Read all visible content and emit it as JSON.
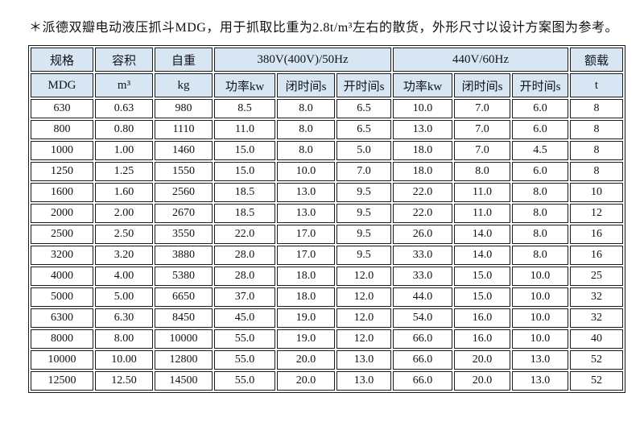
{
  "title": "＊派德双瓣电动液压抓斗MDG，用于抓取比重为2.8t/m³左右的散货，外形尺寸以设计方案图为参考。",
  "colors": {
    "header_bg": "#d8e6f3",
    "border": "#1a1a1a",
    "text": "#111111",
    "page_bg": "#ffffff"
  },
  "table": {
    "top_headers": [
      {
        "label": "规格",
        "colspan": 1
      },
      {
        "label": "容积",
        "colspan": 1
      },
      {
        "label": "自重",
        "colspan": 1
      },
      {
        "label": "380V(400V)/50Hz",
        "colspan": 3
      },
      {
        "label": "440V/60Hz",
        "colspan": 3
      },
      {
        "label": "额载",
        "colspan": 1
      }
    ],
    "sub_headers": [
      "MDG",
      "m³",
      "kg",
      "功率kw",
      "闭时间s",
      "开时间s",
      "功率kw",
      "闭时间s",
      "开时间s",
      "t"
    ],
    "rows": [
      [
        "630",
        "0.63",
        "980",
        "8.5",
        "8.0",
        "6.5",
        "10.0",
        "7.0",
        "6.0",
        "8"
      ],
      [
        "800",
        "0.80",
        "1110",
        "11.0",
        "8.0",
        "6.5",
        "13.0",
        "7.0",
        "6.0",
        "8"
      ],
      [
        "1000",
        "1.00",
        "1460",
        "15.0",
        "8.0",
        "5.0",
        "18.0",
        "7.0",
        "4.5",
        "8"
      ],
      [
        "1250",
        "1.25",
        "1550",
        "15.0",
        "10.0",
        "7.0",
        "18.0",
        "8.0",
        "6.0",
        "8"
      ],
      [
        "1600",
        "1.60",
        "2560",
        "18.5",
        "13.0",
        "9.5",
        "22.0",
        "11.0",
        "8.0",
        "10"
      ],
      [
        "2000",
        "2.00",
        "2670",
        "18.5",
        "13.0",
        "9.5",
        "22.0",
        "11.0",
        "8.0",
        "12"
      ],
      [
        "2500",
        "2.50",
        "3550",
        "22.0",
        "17.0",
        "9.5",
        "26.0",
        "14.0",
        "8.0",
        "16"
      ],
      [
        "3200",
        "3.20",
        "3880",
        "28.0",
        "17.0",
        "9.5",
        "33.0",
        "14.0",
        "8.0",
        "16"
      ],
      [
        "4000",
        "4.00",
        "5380",
        "28.0",
        "18.0",
        "12.0",
        "33.0",
        "15.0",
        "10.0",
        "25"
      ],
      [
        "5000",
        "5.00",
        "6650",
        "37.0",
        "18.0",
        "12.0",
        "44.0",
        "15.0",
        "10.0",
        "32"
      ],
      [
        "6300",
        "6.30",
        "8450",
        "45.0",
        "19.0",
        "12.0",
        "54.0",
        "16.0",
        "10.0",
        "32"
      ],
      [
        "8000",
        "8.00",
        "10000",
        "55.0",
        "19.0",
        "12.0",
        "66.0",
        "16.0",
        "10.0",
        "40"
      ],
      [
        "10000",
        "10.00",
        "12800",
        "55.0",
        "20.0",
        "13.0",
        "66.0",
        "20.0",
        "13.0",
        "52"
      ],
      [
        "12500",
        "12.50",
        "14500",
        "55.0",
        "20.0",
        "13.0",
        "66.0",
        "20.0",
        "13.0",
        "52"
      ]
    ]
  }
}
